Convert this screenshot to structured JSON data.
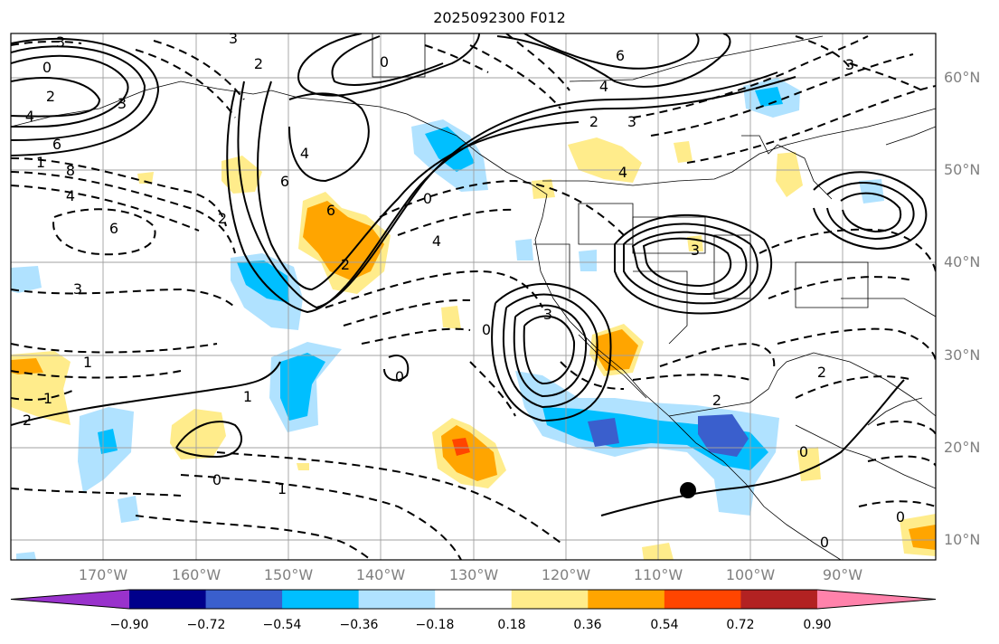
{
  "title": "2025092300 F012",
  "lat_labels": [
    "60°N",
    "50°N",
    "40°N",
    "30°N",
    "20°N",
    "10°N"
  ],
  "lon_labels": [
    "170°W",
    "160°W",
    "150°W",
    "140°W",
    "130°W",
    "120°W",
    "110°W",
    "100°W",
    "90°W"
  ],
  "colorbar": {
    "ticks": [
      "−0.90",
      "−0.72",
      "−0.54",
      "−0.36",
      "−0.18",
      "0.18",
      "0.36",
      "0.54",
      "0.72",
      "0.90"
    ],
    "colors": [
      "#9932cc",
      "#00008b",
      "#3a5fcd",
      "#00bfff",
      "#b0e2ff",
      "#ffffff",
      "#ffec8b",
      "#ffa500",
      "#ff4500",
      "#b22222",
      "#ff82ab"
    ]
  },
  "contour_labels": [
    "3",
    "0",
    "3",
    "0",
    "6",
    "4",
    "2",
    "3",
    "4",
    "6",
    "8",
    "4",
    "1",
    "2",
    "4",
    "6",
    "2",
    "3",
    "4",
    "6",
    "2",
    "0",
    "4",
    "6",
    "3",
    "2",
    "3",
    "3",
    "0",
    "3",
    "1",
    "1",
    "2",
    "0",
    "1",
    "0",
    "2",
    "0",
    "2",
    "0",
    "0",
    "1"
  ]
}
